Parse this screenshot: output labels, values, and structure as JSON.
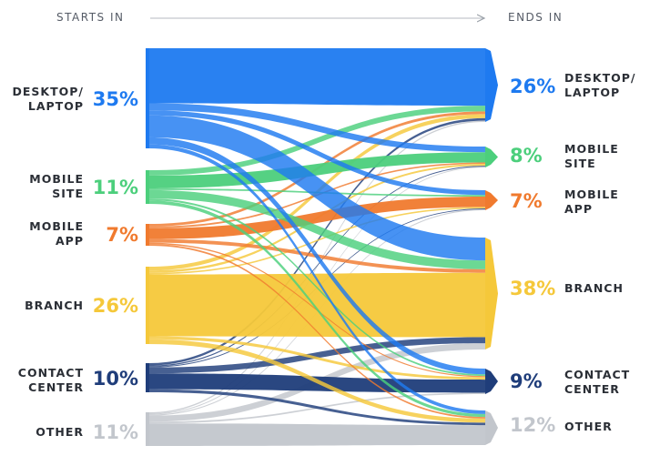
{
  "header": {
    "starts_label": "STARTS IN",
    "ends_label": "ENDS IN"
  },
  "left_nodes": [
    {
      "id": "desktop",
      "label_lines": [
        "DESKTOP/",
        "LAPTOP"
      ],
      "pct": "35%",
      "color": "#1e7af0"
    },
    {
      "id": "msite",
      "label_lines": [
        "MOBILE",
        "SITE"
      ],
      "pct": "11%",
      "color": "#4ccf7c"
    },
    {
      "id": "mapp",
      "label_lines": [
        "MOBILE",
        "APP"
      ],
      "pct": "7%",
      "color": "#f07a2e"
    },
    {
      "id": "branch",
      "label_lines": [
        "BRANCH"
      ],
      "pct": "26%",
      "color": "#f5c83a"
    },
    {
      "id": "contact",
      "label_lines": [
        "CONTACT",
        "CENTER"
      ],
      "pct": "10%",
      "color": "#1f3d7a"
    },
    {
      "id": "other",
      "label_lines": [
        "OTHER"
      ],
      "pct": "11%",
      "color": "#c2c6cc"
    }
  ],
  "right_nodes": [
    {
      "id": "desktop",
      "label_lines": [
        "DESKTOP/",
        "LAPTOP"
      ],
      "pct": "26%",
      "color": "#1e7af0"
    },
    {
      "id": "msite",
      "label_lines": [
        "MOBILE",
        "SITE"
      ],
      "pct": "8%",
      "color": "#4ccf7c"
    },
    {
      "id": "mapp",
      "label_lines": [
        "MOBILE",
        "APP"
      ],
      "pct": "7%",
      "color": "#f07a2e"
    },
    {
      "id": "branch",
      "label_lines": [
        "BRANCH"
      ],
      "pct": "38%",
      "color": "#f5c83a"
    },
    {
      "id": "contact",
      "label_lines": [
        "CONTACT",
        "CENTER"
      ],
      "pct": "9%",
      "color": "#1f3d7a"
    },
    {
      "id": "other",
      "label_lines": [
        "OTHER"
      ],
      "pct": "12%",
      "color": "#c2c6cc"
    }
  ]
}
